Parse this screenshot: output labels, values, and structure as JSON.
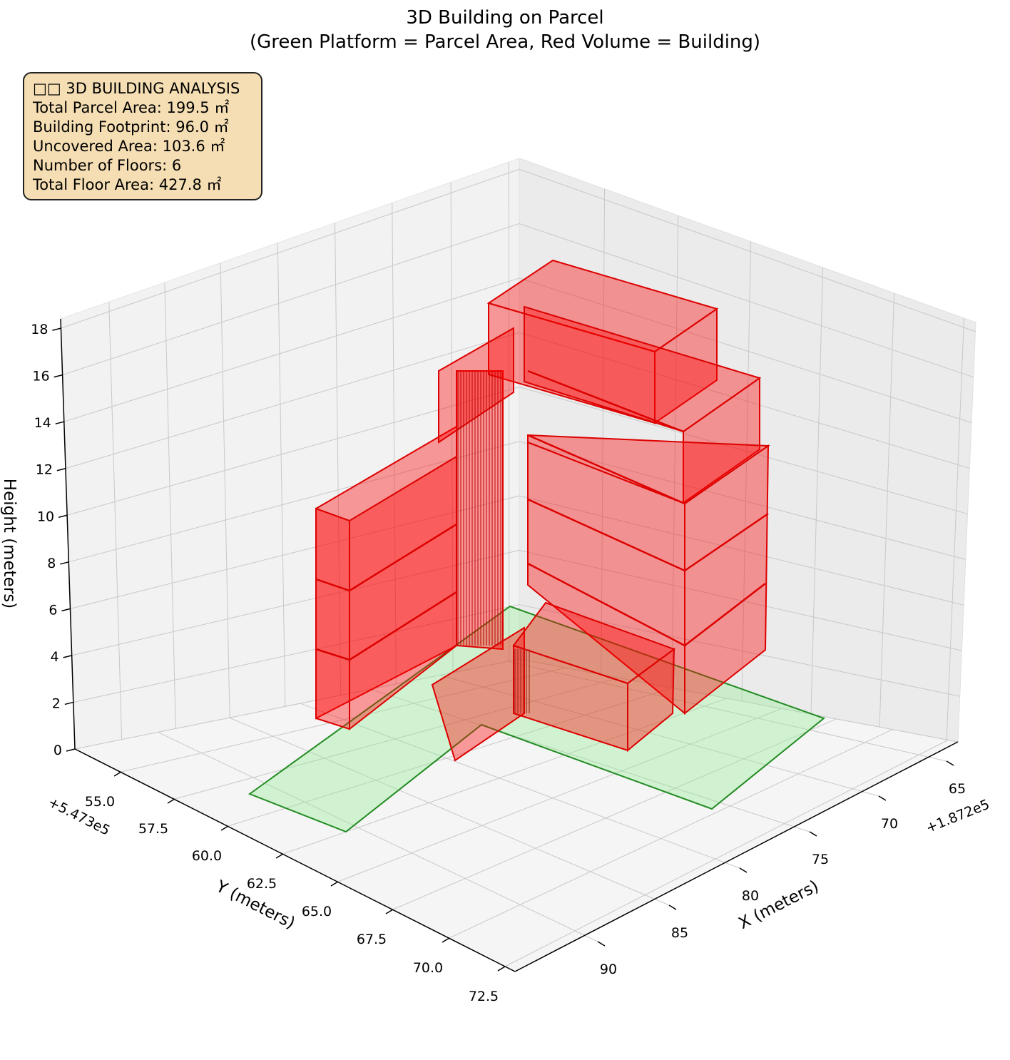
{
  "chart_data": {
    "type": "3d-polygons",
    "title": "3D Building on Parcel",
    "subtitle": "(Green Platform = Parcel Area, Red Volume = Building)",
    "xlabel": "X (meters)",
    "ylabel": "Y (meters)",
    "zlabel": "Height (meters)",
    "x_offset_label": "+1.872e5",
    "y_offset_label": "+5.473e5",
    "x_ticks": [
      "65",
      "70",
      "75",
      "80",
      "85",
      "90"
    ],
    "y_ticks": [
      "55.0",
      "57.5",
      "60.0",
      "62.5",
      "65.0",
      "67.5",
      "70.0",
      "72.5"
    ],
    "z_ticks": [
      "0",
      "2",
      "4",
      "6",
      "8",
      "10",
      "12",
      "14",
      "16",
      "18"
    ],
    "grid": true,
    "parcel_color": "#90ee90",
    "building_color": "#ff0000",
    "parcel_edge_color": "#228b22",
    "building_edge_color": "#dd0000"
  },
  "info_box": {
    "line1": "□□ 3D BUILDING ANALYSIS",
    "line2": "Total Parcel Area: 199.5 ㎡",
    "line3": "Building Footprint: 96.0 ㎡",
    "line4": "Uncovered Area: 103.6 ㎡",
    "line5": "Number of Floors: 6",
    "line6": "Total Floor Area: 427.8 ㎡"
  }
}
